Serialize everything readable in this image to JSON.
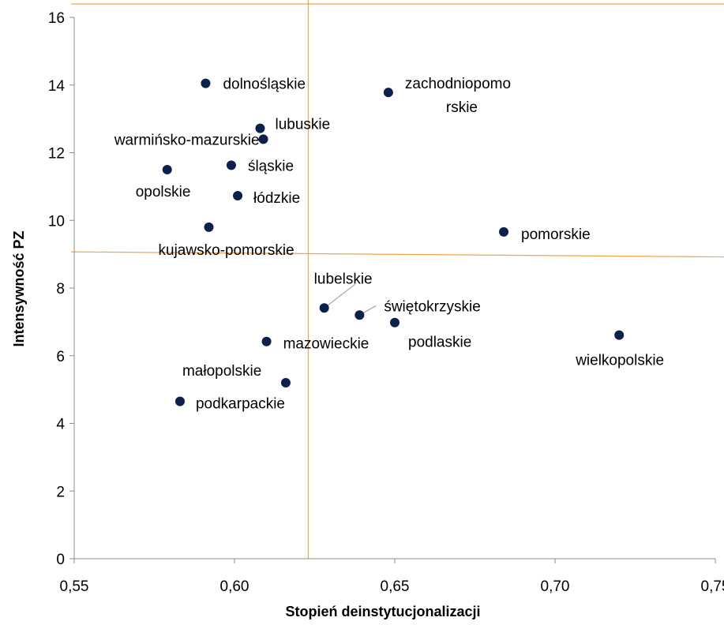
{
  "chart_data": {
    "type": "scatter",
    "title": "",
    "xlabel": "Stopień deinstytucjonalizacji",
    "ylabel": "Intensywność PZ",
    "xlim": [
      0.55,
      0.75
    ],
    "ylim": [
      0,
      16
    ],
    "x_ticks": [
      0.55,
      0.6,
      0.65,
      0.7,
      0.75
    ],
    "x_tick_labels": [
      "0,55",
      "0,60",
      "0,65",
      "0,70",
      "0,75"
    ],
    "y_ticks": [
      0,
      2,
      4,
      6,
      8,
      10,
      12,
      14,
      16
    ],
    "y_tick_labels": [
      "0",
      "2",
      "4",
      "6",
      "8",
      "10",
      "12",
      "14",
      "16"
    ],
    "grid": false,
    "marker_color": "#0d1f4d",
    "reference_line_color": "#f5a54a",
    "leader_line_color": "#a6a6a6",
    "reference_lines": {
      "vertical_x": 0.623,
      "horizontal_y_from": 9.07,
      "horizontal_y_to": 8.92
    },
    "points": [
      {
        "label": "dolnośląskie",
        "x": 0.591,
        "y": 14.05,
        "label_anchor": "start",
        "label_lines": [
          "dolnośląskie"
        ]
      },
      {
        "label": "zachodniopomorskie",
        "x": 0.648,
        "y": 13.78,
        "label_anchor": "start",
        "label_lines": [
          "zachodniopomo",
          "rskie"
        ]
      },
      {
        "label": "lubuskie",
        "x": 0.608,
        "y": 12.72,
        "label_anchor": "start",
        "label_lines": [
          "lubuskie"
        ]
      },
      {
        "label": "warmińsko-mazurskie",
        "x": 0.609,
        "y": 12.4,
        "label_anchor": "end",
        "label_lines": [
          "warmińsko-mazurskie"
        ]
      },
      {
        "label": "śląskie",
        "x": 0.599,
        "y": 11.63,
        "label_anchor": "start",
        "label_lines": [
          "śląskie"
        ]
      },
      {
        "label": "opolskie",
        "x": 0.579,
        "y": 11.5,
        "label_anchor": "start",
        "label_lines": [
          "opolskie"
        ]
      },
      {
        "label": "łódzkie",
        "x": 0.601,
        "y": 10.73,
        "label_anchor": "start",
        "label_lines": [
          "łódzkie"
        ]
      },
      {
        "label": "kujawsko-pomorskie",
        "x": 0.592,
        "y": 9.8,
        "label_anchor": "start",
        "label_lines": [
          "kujawsko-pomorskie"
        ]
      },
      {
        "label": "pomorskie",
        "x": 0.684,
        "y": 9.66,
        "label_anchor": "start",
        "label_lines": [
          "pomorskie"
        ]
      },
      {
        "label": "lubelskie",
        "x": 0.628,
        "y": 7.41,
        "label_anchor": "start",
        "label_lines": [
          "lubelskie"
        ],
        "leader": true
      },
      {
        "label": "świętokrzyskie",
        "x": 0.639,
        "y": 7.2,
        "label_anchor": "start",
        "label_lines": [
          "świętokrzyskie"
        ],
        "leader": true
      },
      {
        "label": "podlaskie",
        "x": 0.65,
        "y": 6.98,
        "label_anchor": "start",
        "label_lines": [
          "podlaskie"
        ]
      },
      {
        "label": "wielkopolskie",
        "x": 0.72,
        "y": 6.61,
        "label_anchor": "start",
        "label_lines": [
          "wielkopolskie"
        ]
      },
      {
        "label": "mazowieckie",
        "x": 0.61,
        "y": 6.42,
        "label_anchor": "start",
        "label_lines": [
          "mazowieckie"
        ]
      },
      {
        "label": "małopolskie",
        "x": 0.616,
        "y": 5.2,
        "label_anchor": "start",
        "label_lines": [
          "małopolskie"
        ]
      },
      {
        "label": "podkarpackie",
        "x": 0.583,
        "y": 4.65,
        "label_anchor": "start",
        "label_lines": [
          "podkarpackie"
        ]
      }
    ]
  }
}
